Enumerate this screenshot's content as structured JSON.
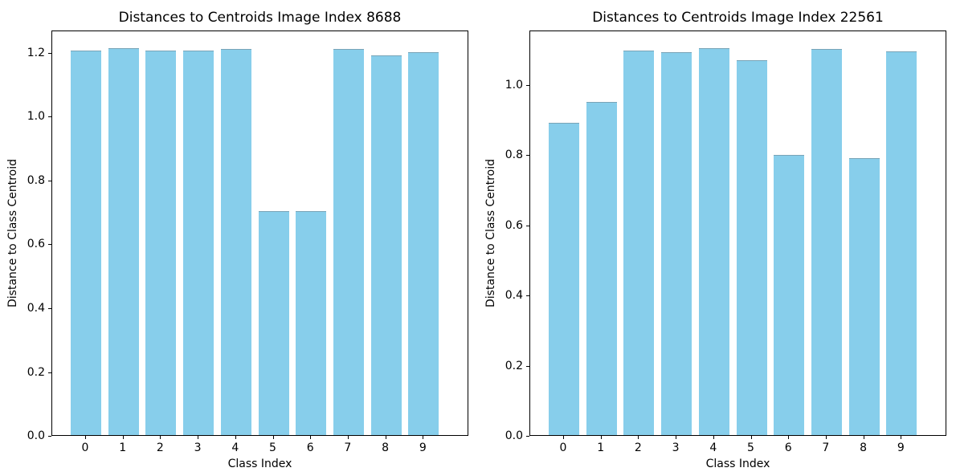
{
  "figure": {
    "background_color": "#ffffff",
    "bar_color": "#87ceeb",
    "axis_color": "#000000",
    "text_color": "#000000"
  },
  "chart_data": [
    {
      "type": "bar",
      "title": "Distances to Centroids Image Index 8688",
      "xlabel": "Class Index",
      "ylabel": "Distance to Class Centroid",
      "categories": [
        "0",
        "1",
        "2",
        "3",
        "4",
        "5",
        "6",
        "7",
        "8",
        "9"
      ],
      "values": [
        1.202,
        1.211,
        1.201,
        1.201,
        1.206,
        0.698,
        0.7,
        1.206,
        1.187,
        1.198
      ],
      "yticks": [
        0.0,
        0.2,
        0.4,
        0.6,
        0.8,
        1.0,
        1.2
      ],
      "ytick_labels": [
        "0.0",
        "0.2",
        "0.4",
        "0.6",
        "0.8",
        "1.0",
        "1.2"
      ],
      "ylim": [
        0,
        1.27
      ],
      "grid": false,
      "legend": null
    },
    {
      "type": "bar",
      "title": "Distances to Centroids Image Index 22561",
      "xlabel": "Class Index",
      "ylabel": "Distance to Class Centroid",
      "categories": [
        "0",
        "1",
        "2",
        "3",
        "4",
        "5",
        "6",
        "7",
        "8",
        "9"
      ],
      "values": [
        0.888,
        0.948,
        1.094,
        1.089,
        1.1,
        1.066,
        0.797,
        1.098,
        0.788,
        1.092
      ],
      "yticks": [
        0.0,
        0.2,
        0.4,
        0.6,
        0.8,
        1.0
      ],
      "ytick_labels": [
        "0.0",
        "0.2",
        "0.4",
        "0.6",
        "0.8",
        "1.0"
      ],
      "ylim": [
        0,
        1.155
      ],
      "grid": false,
      "legend": null
    }
  ]
}
